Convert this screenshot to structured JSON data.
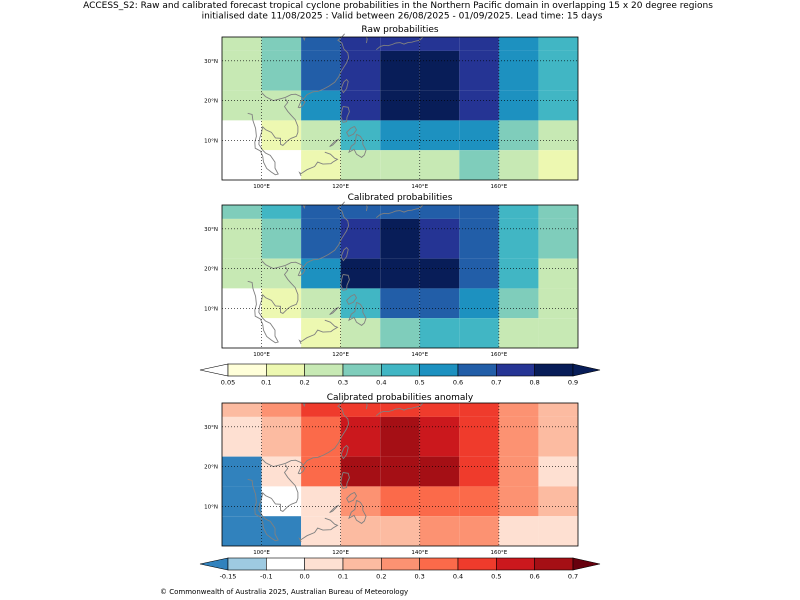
{
  "header": {
    "line1": "ACCESS_S2: Raw and calibrated forecast tropical cyclone probabilities in the Northern Pacific domain in overlapping 15 x 20 degree regions",
    "line2": "initialised date 11/08/2025 :  Valid between 26/08/2025 - 01/09/2025. Lead time: 15 days"
  },
  "footer": "© Commonwealth of Australia 2025, Australian Bureau of Meteorology",
  "axes": {
    "x_ticks": [
      {
        "lon": 100,
        "label": "100°E"
      },
      {
        "lon": 120,
        "label": "120°E"
      },
      {
        "lon": 140,
        "label": "140°E"
      },
      {
        "lon": 160,
        "label": "160°E"
      }
    ],
    "y_ticks": [
      {
        "lat": 30,
        "label": "30°N"
      },
      {
        "lat": 20,
        "label": "20°N"
      },
      {
        "lat": 10,
        "label": "10°N"
      }
    ],
    "lon_edges": [
      90,
      100,
      110,
      120,
      130,
      140,
      150,
      160,
      170,
      180
    ],
    "lat_edges": [
      40,
      32.5,
      22.5,
      15,
      7.5,
      0
    ]
  },
  "colorbars": {
    "prob": {
      "labels": [
        "0.05",
        "0.1",
        "0.2",
        "0.3",
        "0.4",
        "0.5",
        "0.6",
        "0.7",
        "0.8",
        "0.9"
      ],
      "colors": [
        "#ffffd9",
        "#edf8b1",
        "#c7e9b4",
        "#7fcdbb",
        "#41b6c4",
        "#1d91c0",
        "#225ea8",
        "#253494",
        "#081d58"
      ],
      "under": "#ffffff",
      "over": "#081d58"
    },
    "anom": {
      "labels": [
        "-0.15",
        "-0.1",
        "0.0",
        "0.1",
        "0.2",
        "0.3",
        "0.4",
        "0.5",
        "0.6",
        "0.7"
      ],
      "colors": [
        "#9ecae1",
        "#ffffff",
        "#fee0d2",
        "#fcbba1",
        "#fc9272",
        "#fb6a4a",
        "#ef3b2c",
        "#cb181d",
        "#a50f15"
      ],
      "under": "#3182bd",
      "over": "#67000d"
    }
  },
  "chart_data": [
    {
      "type": "heatmap",
      "title": "Raw probabilities",
      "colorscale": "prob",
      "grid": [
        [
          2,
          3,
          6,
          7,
          7,
          7,
          7,
          5,
          4
        ],
        [
          2,
          3,
          6,
          7,
          8,
          8,
          7,
          5,
          4
        ],
        [
          2,
          2,
          5,
          7,
          9,
          8,
          7,
          5,
          4
        ],
        [
          -1,
          1,
          2,
          4,
          5,
          5,
          5,
          3,
          2
        ],
        [
          -1,
          -1,
          1,
          2,
          2,
          2,
          3,
          2,
          1
        ]
      ]
    },
    {
      "type": "heatmap",
      "title": "Calibrated probabilities",
      "colorscale": "prob",
      "grid": [
        [
          3,
          4,
          6,
          6,
          6,
          6,
          6,
          4,
          3
        ],
        [
          2,
          3,
          6,
          7,
          8,
          7,
          6,
          4,
          3
        ],
        [
          2,
          2,
          5,
          8,
          9,
          8,
          6,
          4,
          2
        ],
        [
          -1,
          1,
          2,
          4,
          6,
          6,
          5,
          3,
          2
        ],
        [
          -1,
          -1,
          1,
          2,
          3,
          4,
          4,
          2,
          2
        ]
      ]
    },
    {
      "type": "heatmap",
      "title": "Calibrated probabilities anomaly",
      "colorscale": "anom",
      "grid": [
        [
          3,
          4,
          6,
          6,
          6,
          6,
          6,
          4,
          3
        ],
        [
          2,
          3,
          5,
          7,
          8,
          7,
          6,
          4,
          3
        ],
        [
          -1,
          2,
          5,
          8,
          9,
          8,
          6,
          4,
          2
        ],
        [
          -1,
          1,
          2,
          4,
          5,
          5,
          5,
          4,
          3
        ],
        [
          -1,
          -1,
          2,
          3,
          3,
          4,
          4,
          2,
          2
        ]
      ]
    }
  ]
}
